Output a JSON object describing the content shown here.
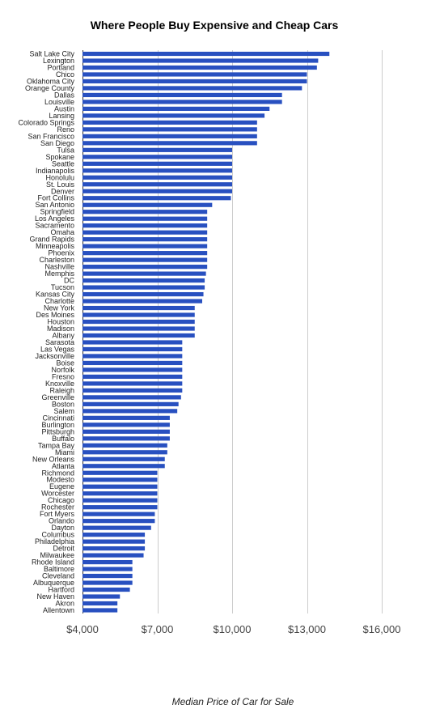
{
  "chart_data": {
    "type": "bar",
    "orientation": "horizontal",
    "title": "Where People Buy Expensive and Cheap Cars",
    "xlabel": "Median Price of Car for Sale",
    "ylabel": "",
    "xlim": [
      4000,
      16000
    ],
    "xticks": [
      4000,
      7000,
      10000,
      13000,
      16000
    ],
    "xtick_labels": [
      "$4,000",
      "$7,000",
      "$10,000",
      "$13,000",
      "$16,000"
    ],
    "grid": true,
    "legend": "none",
    "bar_color": "#2850c0",
    "categories": [
      "Salt Lake City",
      "Lexington",
      "Portland",
      "Chico",
      "Oklahoma City",
      "Orange County",
      "Dallas",
      "Louisville",
      "Austin",
      "Lansing",
      "Colorado Springs",
      "Reno",
      "San Francisco",
      "San Diego",
      "Tulsa",
      "Spokane",
      "Seattle",
      "Indianapolis",
      "Honolulu",
      "St. Louis",
      "Denver",
      "Fort Collins",
      "San Antonio",
      "Springfield",
      "Los Angeles",
      "Sacramento",
      "Omaha",
      "Grand Rapids",
      "Minneapolis",
      "Phoenix",
      "Charleston",
      "Nashville",
      "Memphis",
      "DC",
      "Tucson",
      "Kansas City",
      "Charlotte",
      "New York",
      "Des Moines",
      "Houston",
      "Madison",
      "Albany",
      "Sarasota",
      "Las Vegas",
      "Jacksonville",
      "Boise",
      "Norfolk",
      "Fresno",
      "Knoxville",
      "Raleigh",
      "Greenville",
      "Boston",
      "Salem",
      "Cincinnati",
      "Burlington",
      "Pittsburgh",
      "Buffalo",
      "Tampa Bay",
      "Miami",
      "New Orleans",
      "Atlanta",
      "Richmond",
      "Modesto",
      "Eugene",
      "Worcester",
      "Chicago",
      "Rochester",
      "Fort Myers",
      "Orlando",
      "Dayton",
      "Columbus",
      "Philadelphia",
      "Detroit",
      "Milwaukee",
      "Rhode Island",
      "Baltimore",
      "Cleveland",
      "Albuquerque",
      "Hartford",
      "New Haven",
      "Akron",
      "Allentown"
    ],
    "values": [
      13900,
      13450,
      13400,
      13000,
      13000,
      12800,
      12000,
      12000,
      11500,
      11300,
      11000,
      11000,
      11000,
      11000,
      10000,
      10000,
      10000,
      10000,
      10000,
      10000,
      10000,
      9950,
      9200,
      9000,
      9000,
      9000,
      9000,
      9000,
      9000,
      9000,
      9000,
      9000,
      8950,
      8900,
      8900,
      8850,
      8800,
      8500,
      8500,
      8500,
      8500,
      8500,
      8000,
      8000,
      8000,
      8000,
      8000,
      8000,
      8000,
      8000,
      7950,
      7850,
      7800,
      7500,
      7500,
      7500,
      7500,
      7400,
      7400,
      7300,
      7300,
      7000,
      7000,
      7000,
      7000,
      7000,
      7000,
      6900,
      6900,
      6750,
      6500,
      6500,
      6500,
      6450,
      6000,
      6000,
      6000,
      6000,
      5900,
      5500,
      5400,
      5400
    ]
  }
}
